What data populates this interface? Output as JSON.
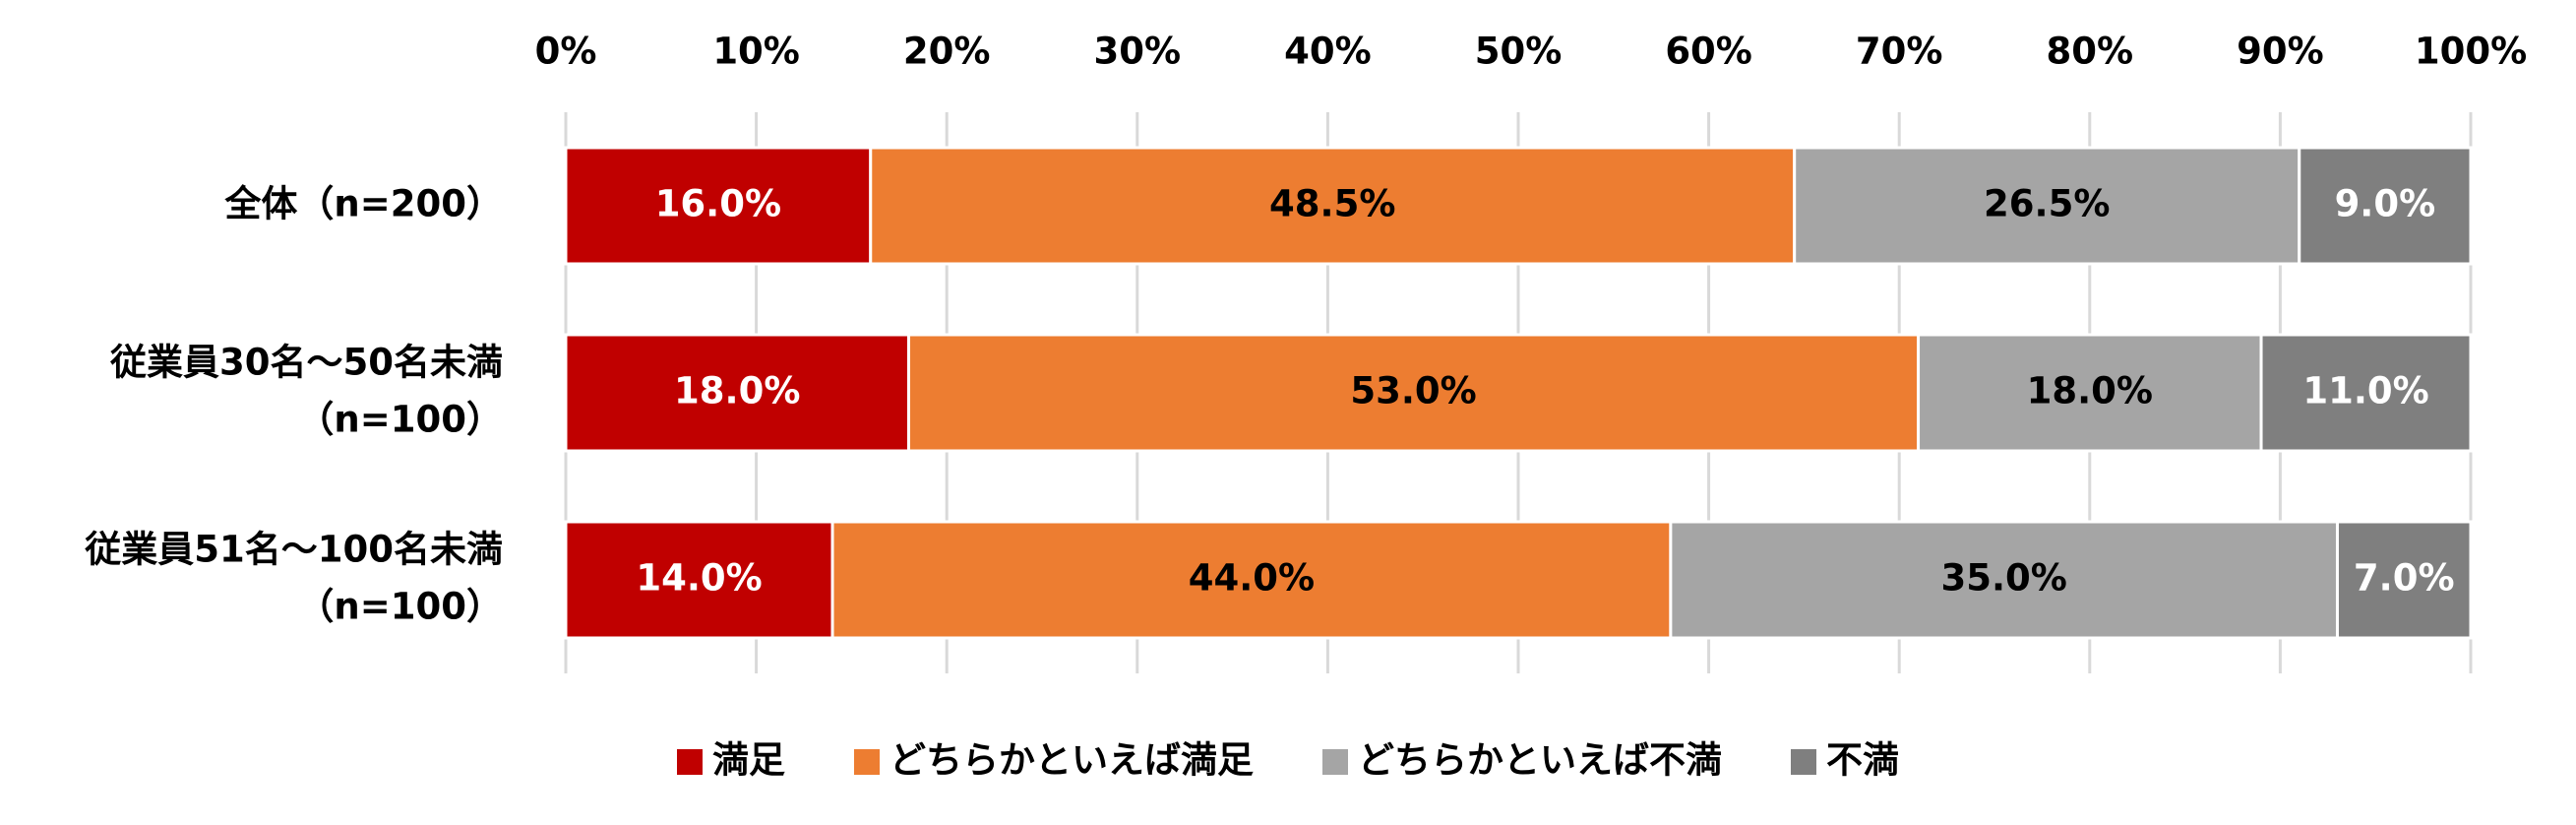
{
  "chart_data": {
    "type": "stacked-bar-horizontal",
    "categories": [
      [
        "全体（n=200）"
      ],
      [
        "従業員30名～50名未満",
        "（n=100）"
      ],
      [
        "従業員51名～100名未満",
        "（n=100）"
      ]
    ],
    "series": [
      {
        "name": "満足",
        "color": "#c00000",
        "label_color": "#ffffff",
        "values": [
          16.0,
          18.0,
          14.0
        ],
        "value_labels": [
          "16.0%",
          "18.0%",
          "14.0%"
        ]
      },
      {
        "name": "どちらかといえば満足",
        "color": "#ed7d31",
        "label_color": "#000000",
        "values": [
          48.5,
          53.0,
          44.0
        ],
        "value_labels": [
          "48.5%",
          "53.0%",
          "44.0%"
        ]
      },
      {
        "name": "どちらかといえば不満",
        "color": "#a5a5a5",
        "label_color": "#000000",
        "values": [
          26.5,
          18.0,
          35.0
        ],
        "value_labels": [
          "26.5%",
          "18.0%",
          "35.0%"
        ]
      },
      {
        "name": "不満",
        "color": "#7f7f7f",
        "label_color": "#ffffff",
        "values": [
          9.0,
          11.0,
          7.0
        ],
        "value_labels": [
          "9.0%",
          "11.0%",
          "7.0%"
        ]
      }
    ],
    "xlim": [
      0,
      100
    ],
    "xticks": [
      {
        "value": 0,
        "label": "0%"
      },
      {
        "value": 10,
        "label": "10%"
      },
      {
        "value": 20,
        "label": "20%"
      },
      {
        "value": 30,
        "label": "30%"
      },
      {
        "value": 40,
        "label": "40%"
      },
      {
        "value": 50,
        "label": "50%"
      },
      {
        "value": 60,
        "label": "60%"
      },
      {
        "value": 70,
        "label": "70%"
      },
      {
        "value": 80,
        "label": "80%"
      },
      {
        "value": 90,
        "label": "90%"
      },
      {
        "value": 100,
        "label": "100%"
      }
    ],
    "grid": true,
    "legend": "bottom"
  }
}
